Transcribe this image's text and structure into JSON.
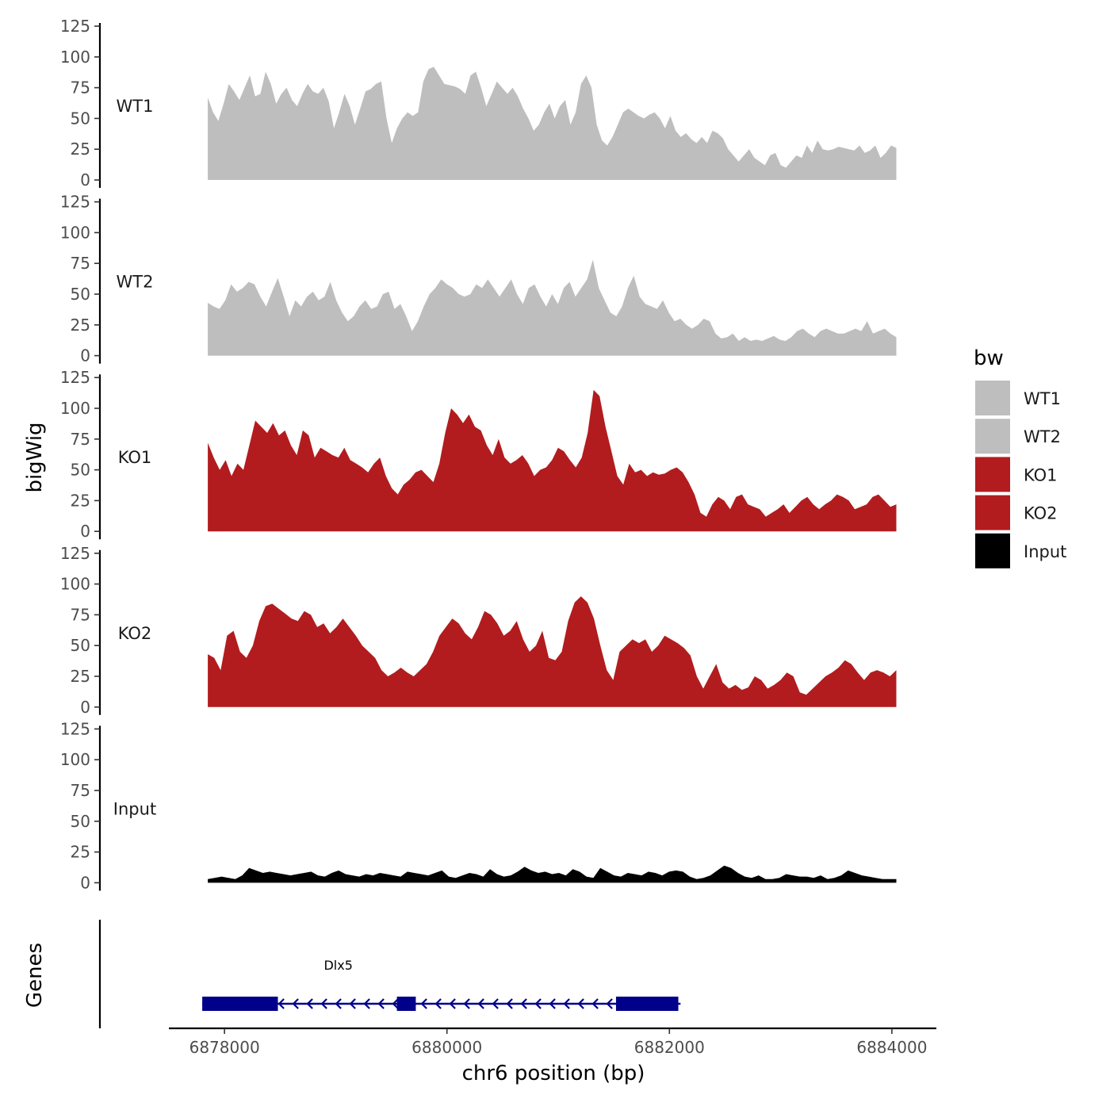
{
  "chart_data": {
    "type": "area",
    "ylabel": "bigWig",
    "xlabel": "chr6 position (bp)",
    "genes_label": "Genes",
    "legend_title": "bw",
    "legend_position": "right",
    "grid": false,
    "ylim": [
      0,
      125
    ],
    "yticks": [
      0,
      25,
      50,
      75,
      100,
      125
    ],
    "xlim": [
      6877500,
      6884400
    ],
    "xticks": [
      6878000,
      6880000,
      6882000,
      6884000
    ],
    "x_start": 6877850,
    "x_end": 6884040,
    "series": [
      {
        "name": "WT1",
        "color": "#bebebe",
        "values": [
          67,
          55,
          48,
          62,
          78,
          72,
          65,
          75,
          85,
          68,
          70,
          88,
          78,
          62,
          70,
          75,
          65,
          60,
          70,
          78,
          72,
          70,
          75,
          64,
          42,
          55,
          70,
          60,
          45,
          58,
          72,
          74,
          78,
          80,
          50,
          30,
          42,
          50,
          55,
          52,
          55,
          80,
          90,
          92,
          85,
          78,
          77,
          76,
          74,
          70,
          85,
          88,
          75,
          60,
          70,
          80,
          75,
          70,
          75,
          68,
          58,
          50,
          40,
          45,
          55,
          62,
          50,
          60,
          65,
          45,
          55,
          78,
          85,
          75,
          45,
          32,
          28,
          35,
          45,
          55,
          58,
          55,
          52,
          50,
          53,
          55,
          50,
          42,
          52,
          40,
          35,
          38,
          33,
          30,
          35,
          30,
          40,
          38,
          34,
          25,
          20,
          15,
          20,
          25,
          18,
          15,
          12,
          20,
          22,
          12,
          10,
          15,
          20,
          18,
          28,
          22,
          32,
          25,
          24,
          25,
          27,
          26,
          25,
          24,
          28,
          22,
          24,
          28,
          18,
          22,
          28,
          26
        ],
        "labels": [
          "WT1"
        ]
      },
      {
        "name": "WT2",
        "color": "#bebebe",
        "values": [
          43,
          40,
          38,
          45,
          58,
          52,
          55,
          60,
          58,
          48,
          40,
          52,
          63,
          48,
          32,
          45,
          40,
          48,
          52,
          45,
          48,
          60,
          45,
          35,
          28,
          32,
          40,
          45,
          38,
          40,
          50,
          52,
          38,
          42,
          32,
          20,
          28,
          40,
          50,
          55,
          62,
          58,
          55,
          50,
          48,
          50,
          58,
          55,
          62,
          55,
          48,
          55,
          62,
          50,
          42,
          55,
          58,
          48,
          40,
          50,
          42,
          55,
          60,
          48,
          55,
          62,
          78,
          55,
          45,
          35,
          32,
          40,
          55,
          65,
          48,
          42,
          40,
          38,
          45,
          35,
          28,
          30,
          25,
          22,
          25,
          30,
          28,
          18,
          14,
          15,
          18,
          12,
          15,
          12,
          13,
          12,
          14,
          16,
          13,
          12,
          15,
          20,
          22,
          18,
          15,
          20,
          22,
          20,
          18,
          18,
          20,
          22,
          20,
          28,
          18,
          20,
          22,
          18,
          15
        ],
        "labels": [
          "WT2"
        ]
      },
      {
        "name": "KO1",
        "color": "#b21c1e",
        "values": [
          72,
          60,
          50,
          58,
          45,
          55,
          50,
          70,
          90,
          85,
          80,
          88,
          78,
          82,
          70,
          62,
          82,
          78,
          60,
          68,
          65,
          62,
          60,
          68,
          58,
          55,
          52,
          48,
          55,
          60,
          45,
          35,
          30,
          38,
          42,
          48,
          50,
          45,
          40,
          55,
          80,
          100,
          95,
          88,
          95,
          85,
          82,
          70,
          62,
          75,
          60,
          55,
          58,
          62,
          55,
          45,
          50,
          52,
          58,
          68,
          65,
          58,
          52,
          60,
          80,
          115,
          110,
          85,
          65,
          45,
          38,
          55,
          48,
          50,
          45,
          48,
          46,
          47,
          50,
          52,
          48,
          40,
          30,
          15,
          12,
          22,
          28,
          25,
          18,
          28,
          30,
          22,
          20,
          18,
          12,
          15,
          18,
          22,
          15,
          20,
          25,
          28,
          22,
          18,
          22,
          25,
          30,
          28,
          25,
          18,
          20,
          22,
          28,
          30,
          25,
          20,
          22
        ],
        "labels": [
          "KO1"
        ]
      },
      {
        "name": "KO2",
        "color": "#b21c1e",
        "values": [
          43,
          40,
          30,
          58,
          62,
          45,
          40,
          50,
          70,
          82,
          84,
          80,
          76,
          72,
          70,
          78,
          75,
          65,
          68,
          60,
          65,
          72,
          65,
          58,
          50,
          45,
          40,
          30,
          25,
          28,
          32,
          28,
          25,
          30,
          35,
          45,
          58,
          65,
          72,
          68,
          60,
          55,
          65,
          78,
          75,
          68,
          58,
          62,
          70,
          55,
          45,
          50,
          62,
          40,
          38,
          45,
          70,
          85,
          90,
          85,
          72,
          50,
          30,
          22,
          45,
          50,
          55,
          52,
          55,
          45,
          50,
          58,
          55,
          52,
          48,
          42,
          25,
          15,
          25,
          35,
          20,
          15,
          18,
          14,
          16,
          25,
          22,
          15,
          18,
          22,
          28,
          25,
          12,
          10,
          15,
          20,
          25,
          28,
          32,
          38,
          35,
          28,
          22,
          28,
          30,
          28,
          25,
          30
        ],
        "labels": [
          "KO2"
        ]
      },
      {
        "name": "Input",
        "color": "#000000",
        "values": [
          3,
          4,
          5,
          4,
          3,
          6,
          12,
          10,
          8,
          9,
          8,
          7,
          6,
          7,
          8,
          9,
          6,
          5,
          8,
          10,
          7,
          6,
          5,
          7,
          6,
          8,
          7,
          6,
          5,
          9,
          8,
          7,
          6,
          8,
          10,
          5,
          4,
          6,
          8,
          7,
          5,
          11,
          7,
          5,
          6,
          9,
          13,
          10,
          8,
          9,
          7,
          8,
          6,
          11,
          9,
          5,
          4,
          12,
          9,
          6,
          5,
          8,
          7,
          6,
          9,
          8,
          6,
          9,
          10,
          9,
          5,
          3,
          4,
          6,
          10,
          14,
          12,
          8,
          5,
          4,
          6,
          3,
          3,
          4,
          7,
          6,
          5,
          5,
          4,
          6,
          3,
          4,
          6,
          10,
          8,
          6,
          5,
          4,
          3,
          3,
          3
        ],
        "labels": [
          "Input"
        ]
      }
    ],
    "gene": {
      "name": "Dlx5",
      "strand": "-",
      "start": 6877800,
      "end": 6882100,
      "exons": [
        [
          6877800,
          6878480
        ],
        [
          6879550,
          6879720
        ],
        [
          6881520,
          6882080
        ]
      ]
    }
  }
}
